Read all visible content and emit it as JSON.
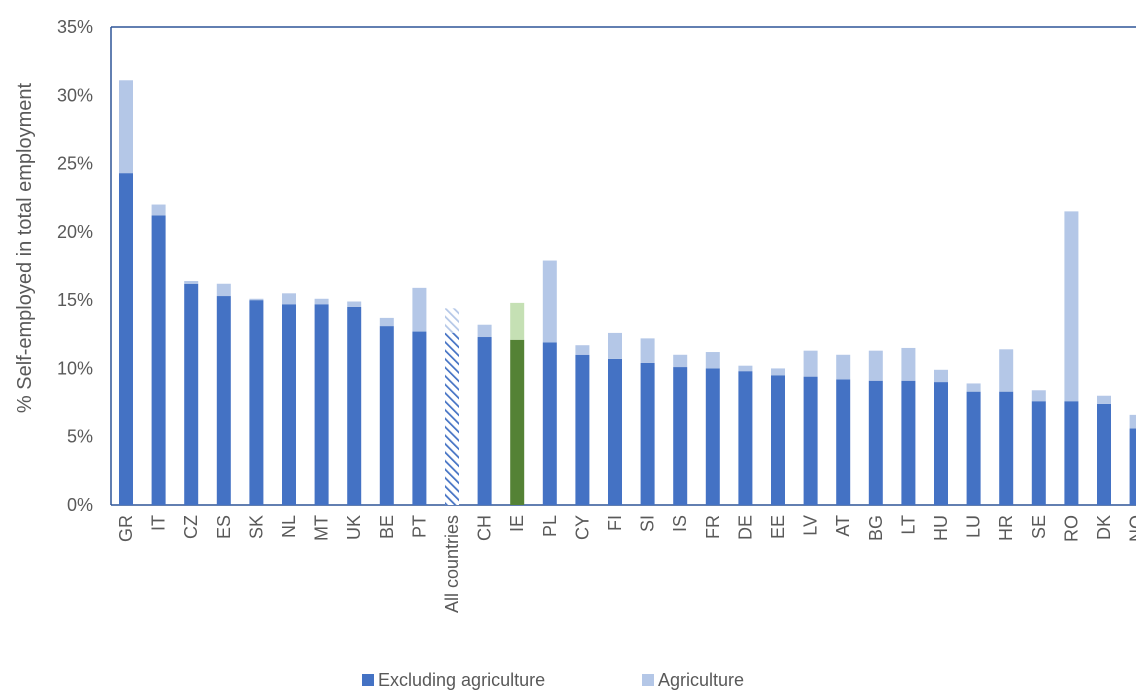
{
  "colors": {
    "excl": "#4472C4",
    "agri": "#B4C7E7",
    "highlight_excl": "#548235",
    "highlight_agri": "#C5E0B4",
    "axis": "#2F5597",
    "text": "#595959"
  },
  "chart_data": {
    "type": "bar",
    "stacked": true,
    "ylabel": "% Self-employed in total employment",
    "ylim": [
      0,
      35
    ],
    "ytick_labels": [
      "0%",
      "5%",
      "10%",
      "15%",
      "20%",
      "25%",
      "30%",
      "35%"
    ],
    "grid": false,
    "legend_position": "bottom",
    "categories": [
      "GR",
      "IT",
      "CZ",
      "ES",
      "SK",
      "NL",
      "MT",
      "UK",
      "BE",
      "PT",
      "All countries",
      "CH",
      "IE",
      "PL",
      "CY",
      "FI",
      "SI",
      "IS",
      "FR",
      "DE",
      "EE",
      "LV",
      "AT",
      "BG",
      "LT",
      "HU",
      "LU",
      "HR",
      "SE",
      "RO",
      "DK",
      "NO"
    ],
    "highlighted_categories": {
      "All countries": "hatched",
      "IE": "green"
    },
    "series": [
      {
        "name": "Excluding agriculture",
        "values": [
          24.3,
          21.2,
          16.2,
          15.3,
          15.0,
          14.7,
          14.7,
          14.5,
          13.1,
          12.7,
          12.6,
          12.3,
          12.1,
          11.9,
          11.0,
          10.7,
          10.4,
          10.1,
          10.0,
          9.8,
          9.5,
          9.4,
          9.2,
          9.1,
          9.1,
          9.0,
          8.3,
          8.3,
          7.6,
          7.6,
          7.4,
          5.6
        ]
      },
      {
        "name": "Agriculture",
        "values": [
          6.8,
          0.8,
          0.2,
          0.9,
          0.1,
          0.8,
          0.4,
          0.4,
          0.6,
          3.2,
          1.8,
          0.9,
          2.7,
          6.0,
          0.7,
          1.9,
          1.8,
          0.9,
          1.2,
          0.4,
          0.5,
          1.9,
          1.8,
          2.2,
          2.4,
          0.9,
          0.6,
          3.1,
          0.8,
          13.9,
          0.6,
          1.0
        ]
      }
    ]
  }
}
